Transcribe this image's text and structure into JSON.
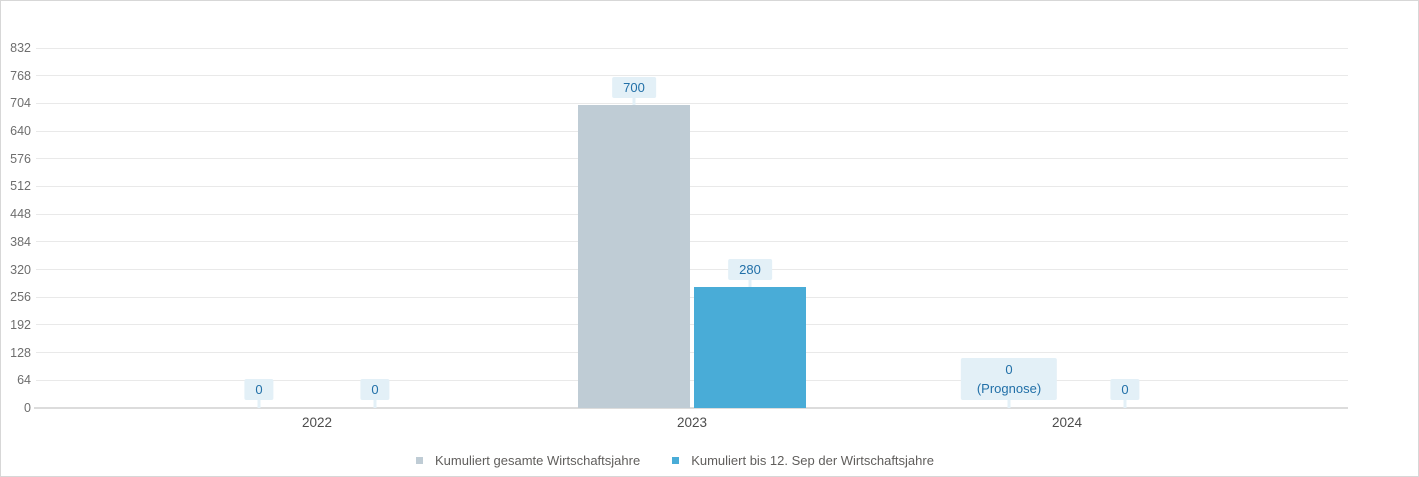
{
  "widget": {
    "background": "#ffffff",
    "border_color": "#d7d7d7"
  },
  "chart_data": {
    "type": "bar",
    "title": "",
    "xlabel": "",
    "ylabel": "",
    "categories": [
      "2022",
      "2023",
      "2024"
    ],
    "series": [
      {
        "key": "kumuliert-gesamt",
        "name": "Kumuliert gesamte Wirtschaftsjahre",
        "color": "#bfccd5",
        "values": [
          0,
          700,
          0
        ],
        "labels": [
          [
            "0"
          ],
          [
            "700"
          ],
          [
            "0",
            "(Prognose)"
          ]
        ]
      },
      {
        "key": "kumuliert-bis-12-sep",
        "name": "Kumuliert bis 12. Sep der Wirtschaftsjahre",
        "color": "#49acd7",
        "values": [
          0,
          280,
          0
        ],
        "labels": [
          [
            "0"
          ],
          [
            "280"
          ],
          [
            "0"
          ]
        ]
      }
    ],
    "yticks": [
      0,
      64,
      128,
      192,
      256,
      320,
      384,
      448,
      512,
      576,
      640,
      704,
      768,
      832
    ],
    "ylim": [
      0,
      832
    ],
    "grid": true,
    "legend_position": "bottom",
    "style": {
      "grid_color": "#e9e9e9",
      "axis_line_color": "#dcdcdc",
      "y_tick_color": "#6e6e6e",
      "x_tick_color": "#4d4d4d",
      "data_label_bg": "#e3f0f7",
      "data_label_color": "#2270a8",
      "legend_text_color": "#605e5c"
    }
  }
}
